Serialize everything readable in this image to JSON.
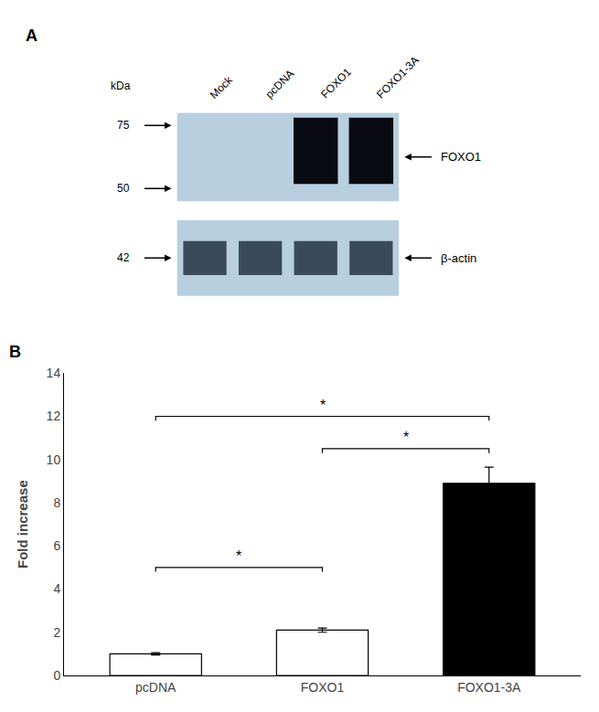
{
  "chart_data": {
    "type": "bar",
    "ylabel": "Fold increase",
    "categories": [
      "pcDNA",
      "FOXO1",
      "FOXO1-3A"
    ],
    "values": [
      1.0,
      2.1,
      8.9
    ],
    "errors": [
      0.05,
      0.1,
      0.75
    ],
    "colors": [
      "white",
      "white",
      "black"
    ],
    "ylim": [
      0,
      14
    ],
    "yticks": [
      0,
      2,
      4,
      6,
      8,
      10,
      12,
      14
    ],
    "grid": false,
    "significance_bars": [
      {
        "x1": 0,
        "x2": 1,
        "y": 5.0,
        "label": "*"
      },
      {
        "x1": 0,
        "x2": 2,
        "y": 12.0,
        "label": "*"
      },
      {
        "x1": 1,
        "x2": 2,
        "y": 10.5,
        "label": "*"
      }
    ],
    "annotations": {
      "panel_labels": [
        "A",
        "B"
      ],
      "kda_unit": "kDa",
      "kda_labels": [
        "75",
        "50",
        "42"
      ],
      "band_labels": [
        "FOXO1",
        "β-actin"
      ],
      "lane_labels": [
        "Mock",
        "pcDNA",
        "FOXO1",
        "FOXO1-3A"
      ]
    },
    "blot_color": "#b8cfe0"
  }
}
